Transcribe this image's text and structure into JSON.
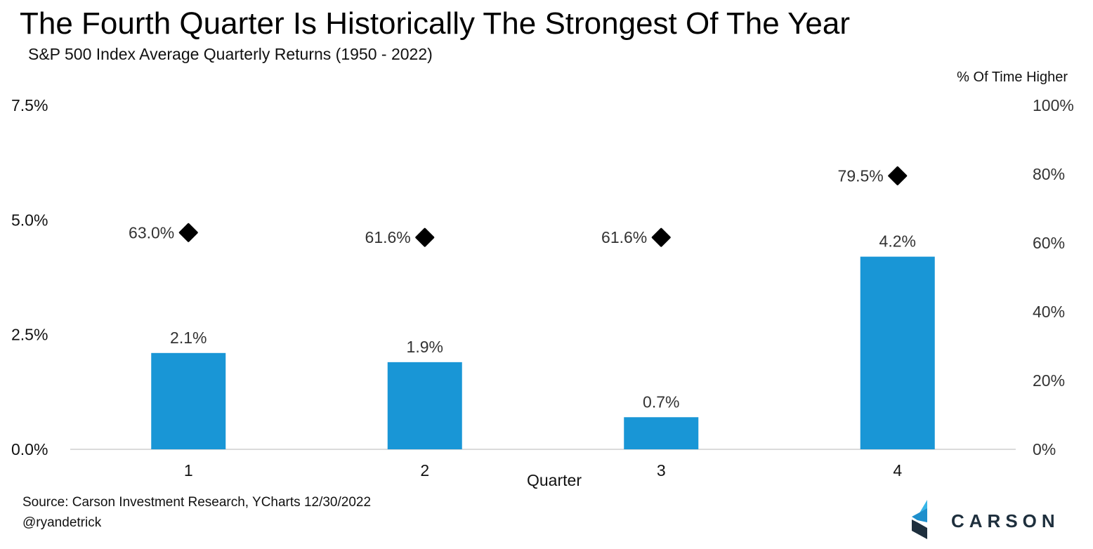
{
  "title": "The Fourth Quarter Is Historically The Strongest Of The Year",
  "subtitle": "S&P 500 Index Average Quarterly Returns (1950 - 2022)",
  "source": "Source: Carson Investment Research, YCharts 12/30/2022",
  "handle": "@ryandetrick",
  "logo_text": "CARSON",
  "colors": {
    "bar": "#1996d6",
    "marker": "#000000",
    "logo_light": "#38b6e8",
    "logo_dark": "#1e2f3d"
  },
  "chart_data": {
    "type": "bar",
    "categories": [
      "1",
      "2",
      "3",
      "4"
    ],
    "xlabel": "Quarter",
    "ylabel_right": "% Of Time Higher",
    "grid": false,
    "y_left": {
      "min": 0,
      "max": 7.5,
      "ticks": [
        "0.0%",
        "2.5%",
        "5.0%",
        "7.5%"
      ],
      "tick_values": [
        0,
        2.5,
        5.0,
        7.5
      ]
    },
    "y_right": {
      "min": 0,
      "max": 100,
      "ticks": [
        "0%",
        "20%",
        "40%",
        "60%",
        "80%",
        "100%"
      ],
      "tick_values": [
        0,
        20,
        40,
        60,
        80,
        100
      ]
    },
    "series": [
      {
        "type": "bar",
        "axis": "left",
        "values": [
          2.1,
          1.9,
          0.7,
          4.2
        ],
        "labels": [
          "2.1%",
          "1.9%",
          "0.7%",
          "4.2%"
        ]
      },
      {
        "type": "scatter",
        "marker": "diamond",
        "axis": "right",
        "values": [
          63.0,
          61.6,
          61.6,
          79.5
        ],
        "labels": [
          "63.0%",
          "61.6%",
          "61.6%",
          "79.5%"
        ]
      }
    ]
  }
}
